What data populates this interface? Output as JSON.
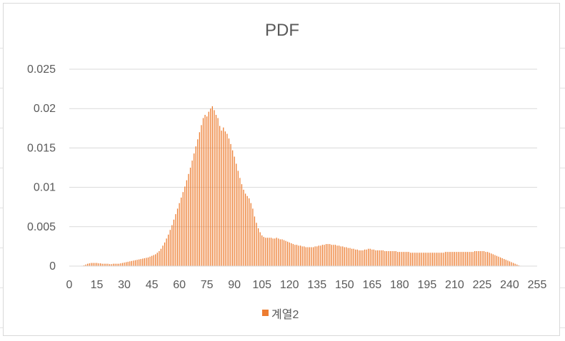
{
  "chart_data": {
    "type": "bar",
    "title": "PDF",
    "xlabel": "",
    "ylabel": "",
    "ylim": [
      0,
      0.025
    ],
    "yticks": [
      "0",
      "0.005",
      "0.01",
      "0.015",
      "0.02",
      "0.025"
    ],
    "xticks": [
      "0",
      "15",
      "30",
      "45",
      "60",
      "75",
      "90",
      "105",
      "120",
      "135",
      "150",
      "165",
      "180",
      "195",
      "210",
      "225",
      "240",
      "255"
    ],
    "grid": true,
    "legend_position": "bottom",
    "series": [
      {
        "name": "계열2",
        "color": "#ED7D31",
        "x_start": 0,
        "values": [
          0,
          0,
          0,
          0,
          0,
          0,
          0,
          5e-05,
          0.0001,
          0.0002,
          0.0003,
          0.00035,
          0.0004,
          0.0004,
          0.0004,
          0.0004,
          0.00035,
          0.00035,
          0.0003,
          0.0003,
          0.0003,
          0.0003,
          0.00025,
          0.00025,
          0.0003,
          0.0003,
          0.0003,
          0.0003,
          0.00035,
          0.0004,
          0.00045,
          0.0005,
          0.00055,
          0.0006,
          0.00065,
          0.0007,
          0.00075,
          0.0008,
          0.00085,
          0.0009,
          0.00095,
          0.001,
          0.00105,
          0.0011,
          0.0012,
          0.0013,
          0.0014,
          0.0015,
          0.0017,
          0.0019,
          0.0022,
          0.0026,
          0.003,
          0.0035,
          0.004,
          0.0046,
          0.0052,
          0.0059,
          0.0066,
          0.0073,
          0.008,
          0.0087,
          0.0094,
          0.0101,
          0.0109,
          0.0117,
          0.0125,
          0.0134,
          0.0143,
          0.0152,
          0.0161,
          0.017,
          0.0179,
          0.0188,
          0.0192,
          0.019,
          0.0196,
          0.02,
          0.0203,
          0.0198,
          0.0192,
          0.0188,
          0.0178,
          0.0172,
          0.0176,
          0.0171,
          0.0168,
          0.0162,
          0.0155,
          0.0147,
          0.0139,
          0.013,
          0.0121,
          0.0112,
          0.0104,
          0.0097,
          0.0092,
          0.0089,
          0.0086,
          0.008,
          0.0073,
          0.0063,
          0.0055,
          0.0048,
          0.0043,
          0.0039,
          0.0037,
          0.0036,
          0.0036,
          0.0036,
          0.0036,
          0.0035,
          0.0035,
          0.0036,
          0.0035,
          0.0034,
          0.0034,
          0.0033,
          0.0032,
          0.0031,
          0.003,
          0.0029,
          0.0028,
          0.0027,
          0.0027,
          0.0026,
          0.0026,
          0.0025,
          0.0025,
          0.0024,
          0.0024,
          0.0024,
          0.0024,
          0.0024,
          0.0025,
          0.0025,
          0.0026,
          0.0026,
          0.0027,
          0.0027,
          0.0028,
          0.0028,
          0.0028,
          0.0027,
          0.0027,
          0.0027,
          0.0026,
          0.0026,
          0.0025,
          0.0025,
          0.0024,
          0.0024,
          0.0023,
          0.0023,
          0.0022,
          0.0022,
          0.0021,
          0.0021,
          0.002,
          0.002,
          0.002,
          0.0021,
          0.0021,
          0.0022,
          0.0022,
          0.0021,
          0.0021,
          0.002,
          0.002,
          0.002,
          0.002,
          0.002,
          0.0019,
          0.0019,
          0.0019,
          0.0019,
          0.0019,
          0.0019,
          0.0019,
          0.0018,
          0.0018,
          0.0018,
          0.0018,
          0.0018,
          0.0018,
          0.0018,
          0.0017,
          0.0017,
          0.0017,
          0.0017,
          0.0017,
          0.0017,
          0.0017,
          0.0017,
          0.0017,
          0.0017,
          0.0017,
          0.0017,
          0.0017,
          0.0017,
          0.0017,
          0.0017,
          0.0017,
          0.0017,
          0.0017,
          0.0018,
          0.0018,
          0.0018,
          0.0018,
          0.0018,
          0.0018,
          0.0018,
          0.0018,
          0.0018,
          0.0018,
          0.0018,
          0.0018,
          0.0018,
          0.0018,
          0.0018,
          0.0018,
          0.0019,
          0.0019,
          0.0019,
          0.0019,
          0.0019,
          0.0019,
          0.0018,
          0.0018,
          0.0017,
          0.0016,
          0.0015,
          0.0014,
          0.0013,
          0.0012,
          0.0011,
          0.001,
          0.0009,
          0.0008,
          0.0007,
          0.0006,
          0.0005,
          0.0004,
          0.0003,
          0.0002,
          0.0001,
          5e-05
        ]
      }
    ]
  }
}
